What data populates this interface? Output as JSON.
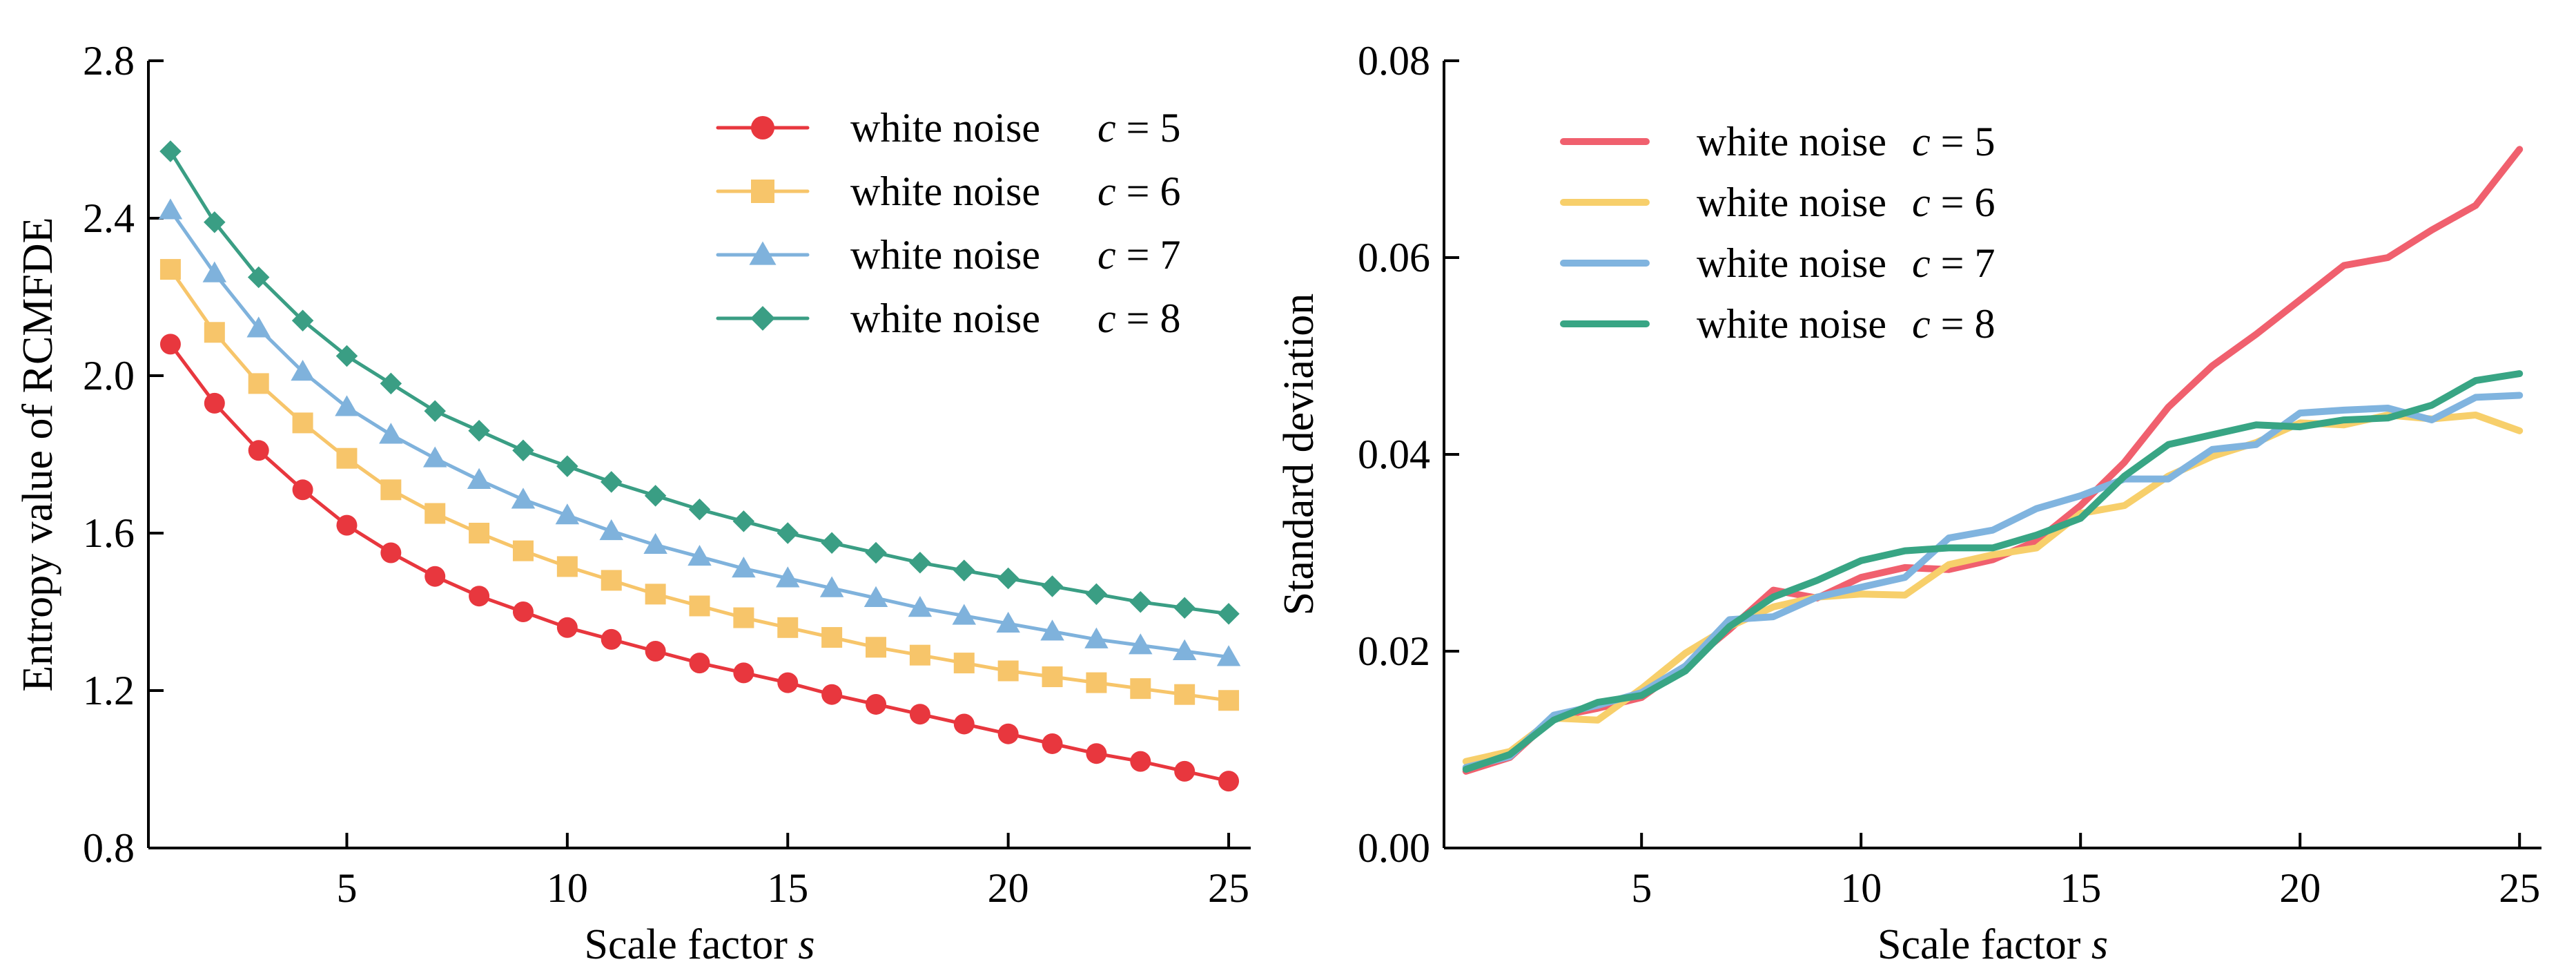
{
  "chart_data": [
    {
      "type": "line",
      "markers": true,
      "xlabel": "Scale factor",
      "xlabel_var": "s",
      "ylabel": "Entropy value of RCMFDE",
      "xlim": [
        0.5,
        25.5
      ],
      "ylim": [
        0.8,
        2.8
      ],
      "xticks": [
        5,
        10,
        15,
        20,
        25
      ],
      "xtick_labels": [
        "5",
        "10",
        "15",
        "20",
        "25"
      ],
      "yticks": [
        0.8,
        1.2,
        1.6,
        2.0,
        2.4,
        2.8
      ],
      "ytick_labels": [
        "0.8",
        "1.2",
        "1.6",
        "2.0",
        "2.4",
        "2.8"
      ],
      "legend_position": "top-right",
      "x": [
        1,
        2,
        3,
        4,
        5,
        6,
        7,
        8,
        9,
        10,
        11,
        12,
        13,
        14,
        15,
        16,
        17,
        18,
        19,
        20,
        21,
        22,
        23,
        24,
        25
      ],
      "series": [
        {
          "name": "white noise",
          "param": "c = 5",
          "color": "#e8373e",
          "marker": "circle",
          "values": [
            2.08,
            1.93,
            1.81,
            1.71,
            1.62,
            1.55,
            1.49,
            1.44,
            1.4,
            1.36,
            1.33,
            1.3,
            1.27,
            1.245,
            1.22,
            1.19,
            1.165,
            1.14,
            1.115,
            1.09,
            1.065,
            1.04,
            1.02,
            0.995,
            0.97
          ]
        },
        {
          "name": "white noise",
          "param": "c = 6",
          "color": "#f7c56a",
          "marker": "square",
          "values": [
            2.27,
            2.11,
            1.98,
            1.88,
            1.79,
            1.71,
            1.65,
            1.6,
            1.555,
            1.515,
            1.48,
            1.445,
            1.415,
            1.385,
            1.36,
            1.335,
            1.31,
            1.29,
            1.27,
            1.25,
            1.235,
            1.22,
            1.205,
            1.19,
            1.175
          ]
        },
        {
          "name": "white noise",
          "param": "c = 7",
          "color": "#7fb2dc",
          "marker": "triangle",
          "values": [
            2.42,
            2.26,
            2.12,
            2.01,
            1.92,
            1.85,
            1.79,
            1.735,
            1.685,
            1.645,
            1.605,
            1.57,
            1.54,
            1.51,
            1.485,
            1.46,
            1.435,
            1.41,
            1.39,
            1.37,
            1.35,
            1.33,
            1.315,
            1.3,
            1.285
          ]
        },
        {
          "name": "white noise",
          "param": "c = 8",
          "color": "#3a9e84",
          "marker": "diamond",
          "values": [
            2.57,
            2.39,
            2.25,
            2.14,
            2.05,
            1.98,
            1.91,
            1.86,
            1.81,
            1.77,
            1.73,
            1.695,
            1.66,
            1.63,
            1.6,
            1.575,
            1.55,
            1.525,
            1.505,
            1.485,
            1.465,
            1.445,
            1.425,
            1.41,
            1.395
          ]
        }
      ]
    },
    {
      "type": "line",
      "markers": false,
      "xlabel": "Scale factor",
      "xlabel_var": "s",
      "ylabel": "Standard deviation",
      "xlim": [
        0.5,
        25.5
      ],
      "ylim": [
        0.0,
        0.08
      ],
      "xticks": [
        5,
        10,
        15,
        20,
        25
      ],
      "xtick_labels": [
        "5",
        "10",
        "15",
        "20",
        "25"
      ],
      "yticks": [
        0.0,
        0.02,
        0.04,
        0.06,
        0.08
      ],
      "ytick_labels": [
        "0.00",
        "0.02",
        "0.04",
        "0.06",
        "0.08"
      ],
      "legend_position": "top-left",
      "x": [
        1,
        2,
        3,
        4,
        5,
        6,
        7,
        8,
        9,
        10,
        11,
        12,
        13,
        14,
        15,
        16,
        17,
        18,
        19,
        20,
        21,
        22,
        23,
        24,
        25
      ],
      "series": [
        {
          "name": "white noise",
          "param": "c = 5",
          "color": "#f0606e",
          "values": [
            0.0078,
            0.0092,
            0.0133,
            0.0142,
            0.0153,
            0.0185,
            0.0222,
            0.0262,
            0.0254,
            0.0275,
            0.0285,
            0.0283,
            0.0293,
            0.0312,
            0.0348,
            0.0392,
            0.0448,
            0.049,
            0.0522,
            0.0557,
            0.0592,
            0.06,
            0.0628,
            0.0653,
            0.071
          ]
        },
        {
          "name": "white noise",
          "param": "c = 6",
          "color": "#f7cf6b",
          "values": [
            0.0088,
            0.0098,
            0.0132,
            0.013,
            0.0162,
            0.0198,
            0.0225,
            0.0245,
            0.0255,
            0.0258,
            0.0257,
            0.0288,
            0.0298,
            0.0305,
            0.034,
            0.0348,
            0.0378,
            0.0398,
            0.0412,
            0.0432,
            0.043,
            0.044,
            0.0436,
            0.044,
            0.0424
          ]
        },
        {
          "name": "white noise",
          "param": "c = 7",
          "color": "#80b4df",
          "values": [
            0.0082,
            0.0093,
            0.0135,
            0.0145,
            0.0158,
            0.0185,
            0.0232,
            0.0235,
            0.0255,
            0.0265,
            0.0275,
            0.0315,
            0.0323,
            0.0345,
            0.0358,
            0.0375,
            0.0375,
            0.0405,
            0.041,
            0.0442,
            0.0445,
            0.0447,
            0.0435,
            0.0458,
            0.046
          ]
        },
        {
          "name": "white noise",
          "param": "c = 8",
          "color": "#38a584",
          "values": [
            0.008,
            0.0095,
            0.013,
            0.0148,
            0.0155,
            0.018,
            0.0225,
            0.0255,
            0.0272,
            0.0292,
            0.0302,
            0.0305,
            0.0305,
            0.0318,
            0.0335,
            0.0378,
            0.041,
            0.042,
            0.043,
            0.0428,
            0.0435,
            0.0437,
            0.045,
            0.0475,
            0.0482
          ]
        }
      ]
    }
  ]
}
